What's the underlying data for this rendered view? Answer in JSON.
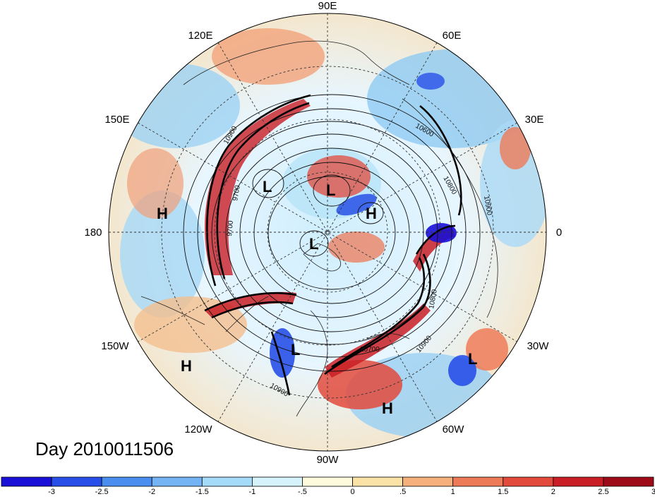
{
  "title": "Day 2010011506",
  "longitude_labels": {
    "n": "90E",
    "ne_upper": "60E",
    "ne_lower": "30E",
    "e": "0",
    "se_upper": "30W",
    "se_lower": "60W",
    "s": "90W",
    "sw_lower": "120W",
    "sw_upper": "150W",
    "w": "180",
    "nw_lower": "150E",
    "nw_upper": "120E"
  },
  "contour_labels": {
    "c1": "10900",
    "c2": "9700",
    "c3": "9700",
    "c4": "10600",
    "c5": "10900",
    "c6": "10800",
    "c7": "10900",
    "c8": "10700",
    "c9": "10900",
    "c10": "10800"
  },
  "centers": {
    "l1": "L",
    "l2": "L",
    "l3": "L",
    "l4": "L",
    "l5": "L",
    "h1": "H",
    "h2": "H",
    "h3": "H",
    "h4": "H"
  },
  "colorbar": {
    "colors": [
      "#1a0fd6",
      "#2850e8",
      "#4a8ff0",
      "#74b4f4",
      "#a3dbf9",
      "#d6f2fb",
      "#fdfbdc",
      "#fbe3a8",
      "#f5b07c",
      "#ee7b58",
      "#e24a3c",
      "#c91e26",
      "#9e0b18"
    ],
    "labels": [
      "-3",
      "-2.5",
      "-2",
      "-1.5",
      "-1",
      "-.5",
      "0",
      ".5",
      "1",
      "1.5",
      "2",
      "2.5",
      "3"
    ]
  },
  "colors": {
    "ocean": "#d9efff",
    "land_line": "#222222",
    "contour": "#111111"
  }
}
